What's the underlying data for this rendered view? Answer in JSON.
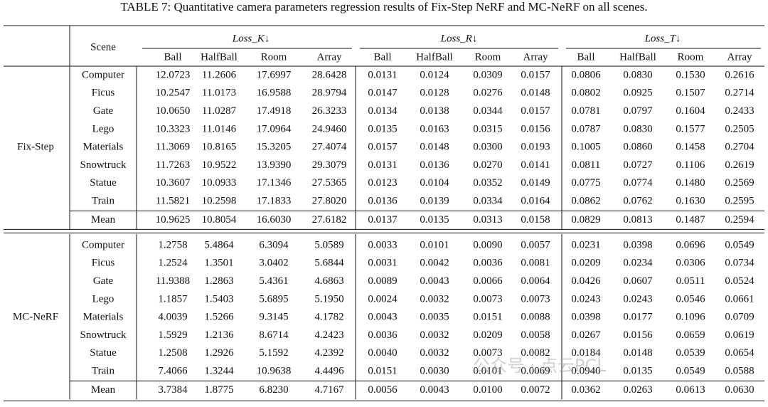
{
  "title": "TABLE 7: Quantitative camera parameters regression results of Fix-Step NeRF and MC-NeRF on all scenes.",
  "header": {
    "scene": "Scene",
    "groups": [
      "Loss_K↓",
      "Loss_R↓",
      "Loss_T↓"
    ],
    "columns": [
      "Ball",
      "HalfBall",
      "Room",
      "Array",
      "Ball",
      "HalfBall",
      "Room",
      "Array",
      "Ball",
      "HalfBall",
      "Room",
      "Array"
    ]
  },
  "sections": [
    {
      "method": "Fix-Step",
      "rows": [
        {
          "scene": "Computer",
          "values": [
            "12.0723",
            "11.2606",
            "17.6997",
            "28.6428",
            "0.0131",
            "0.0124",
            "0.0309",
            "0.0157",
            "0.0806",
            "0.0830",
            "0.1530",
            "0.2616"
          ]
        },
        {
          "scene": "Ficus",
          "values": [
            "10.2547",
            "11.0173",
            "16.9588",
            "28.9794",
            "0.0147",
            "0.0128",
            "0.0276",
            "0.0148",
            "0.0802",
            "0.0925",
            "0.1507",
            "0.2714"
          ]
        },
        {
          "scene": "Gate",
          "values": [
            "10.0650",
            "11.0287",
            "17.4918",
            "26.3233",
            "0.0134",
            "0.0138",
            "0.0344",
            "0.0157",
            "0.0781",
            "0.0797",
            "0.1604",
            "0.2433"
          ]
        },
        {
          "scene": "Lego",
          "values": [
            "10.3323",
            "11.0146",
            "17.0964",
            "24.9460",
            "0.0135",
            "0.0163",
            "0.0315",
            "0.0156",
            "0.0787",
            "0.0830",
            "0.1577",
            "0.2505"
          ]
        },
        {
          "scene": "Materials",
          "values": [
            "11.3069",
            "10.8165",
            "15.3205",
            "27.4074",
            "0.0157",
            "0.0148",
            "0.0300",
            "0.0193",
            "0.1005",
            "0.0860",
            "0.1458",
            "0.2704"
          ]
        },
        {
          "scene": "Snowtruck",
          "values": [
            "11.7263",
            "10.9522",
            "13.9390",
            "29.3079",
            "0.0131",
            "0.0136",
            "0.0270",
            "0.0141",
            "0.0811",
            "0.0727",
            "0.1106",
            "0.2619"
          ]
        },
        {
          "scene": "Statue",
          "values": [
            "10.3607",
            "10.0933",
            "17.1346",
            "27.5365",
            "0.0123",
            "0.0104",
            "0.0352",
            "0.0149",
            "0.0775",
            "0.0774",
            "0.1480",
            "0.2569"
          ]
        },
        {
          "scene": "Train",
          "values": [
            "11.5821",
            "10.2598",
            "17.1833",
            "27.8020",
            "0.0136",
            "0.0139",
            "0.0334",
            "0.0164",
            "0.0862",
            "0.0762",
            "0.1630",
            "0.2595"
          ]
        }
      ],
      "mean": {
        "scene": "Mean",
        "values": [
          "10.9625",
          "10.8054",
          "16.6030",
          "27.6182",
          "0.0137",
          "0.0135",
          "0.0313",
          "0.0158",
          "0.0829",
          "0.0813",
          "0.1487",
          "0.2594"
        ]
      }
    },
    {
      "method": "MC-NeRF",
      "rows": [
        {
          "scene": "Computer",
          "values": [
            "1.2758",
            "5.4864",
            "6.3094",
            "5.0589",
            "0.0033",
            "0.0101",
            "0.0090",
            "0.0057",
            "0.0231",
            "0.0398",
            "0.0696",
            "0.0549"
          ]
        },
        {
          "scene": "Ficus",
          "values": [
            "1.2524",
            "1.3501",
            "3.0402",
            "5.6844",
            "0.0031",
            "0.0042",
            "0.0036",
            "0.0081",
            "0.0209",
            "0.0234",
            "0.0306",
            "0.0734"
          ]
        },
        {
          "scene": "Gate",
          "values": [
            "11.9388",
            "1.2863",
            "5.4361",
            "4.6863",
            "0.0089",
            "0.0043",
            "0.0066",
            "0.0064",
            "0.0426",
            "0.0607",
            "0.0511",
            "0.0524"
          ]
        },
        {
          "scene": "Lego",
          "values": [
            "1.1857",
            "1.5403",
            "5.6895",
            "5.1950",
            "0.0024",
            "0.0032",
            "0.0073",
            "0.0073",
            "0.0243",
            "0.0243",
            "0.0546",
            "0.0661"
          ]
        },
        {
          "scene": "Materials",
          "values": [
            "4.0039",
            "1.5266",
            "9.3145",
            "4.1782",
            "0.0043",
            "0.0035",
            "0.0151",
            "0.0088",
            "0.0398",
            "0.0177",
            "0.1096",
            "0.0709"
          ]
        },
        {
          "scene": "Snowtruck",
          "values": [
            "1.5929",
            "1.2136",
            "8.6714",
            "4.2423",
            "0.0036",
            "0.0032",
            "0.0209",
            "0.0058",
            "0.0267",
            "0.0156",
            "0.0659",
            "0.0619"
          ]
        },
        {
          "scene": "Statue",
          "values": [
            "1.2508",
            "1.2926",
            "5.1592",
            "4.2392",
            "0.0040",
            "0.0032",
            "0.0073",
            "0.0082",
            "0.0184",
            "0.0148",
            "0.0539",
            "0.0654"
          ]
        },
        {
          "scene": "Train",
          "values": [
            "7.4066",
            "1.3244",
            "10.9638",
            "4.4496",
            "0.0151",
            "0.0030",
            "0.0101",
            "0.0069",
            "0.0940",
            "0.0135",
            "0.0549",
            "0.0588"
          ]
        }
      ],
      "mean": {
        "scene": "Mean",
        "values": [
          "3.7384",
          "1.8775",
          "6.8230",
          "4.7167",
          "0.0056",
          "0.0043",
          "0.0100",
          "0.0072",
          "0.0362",
          "0.0263",
          "0.0613",
          "0.0630"
        ]
      }
    }
  ],
  "watermark": "公众号 · 点云PCL"
}
